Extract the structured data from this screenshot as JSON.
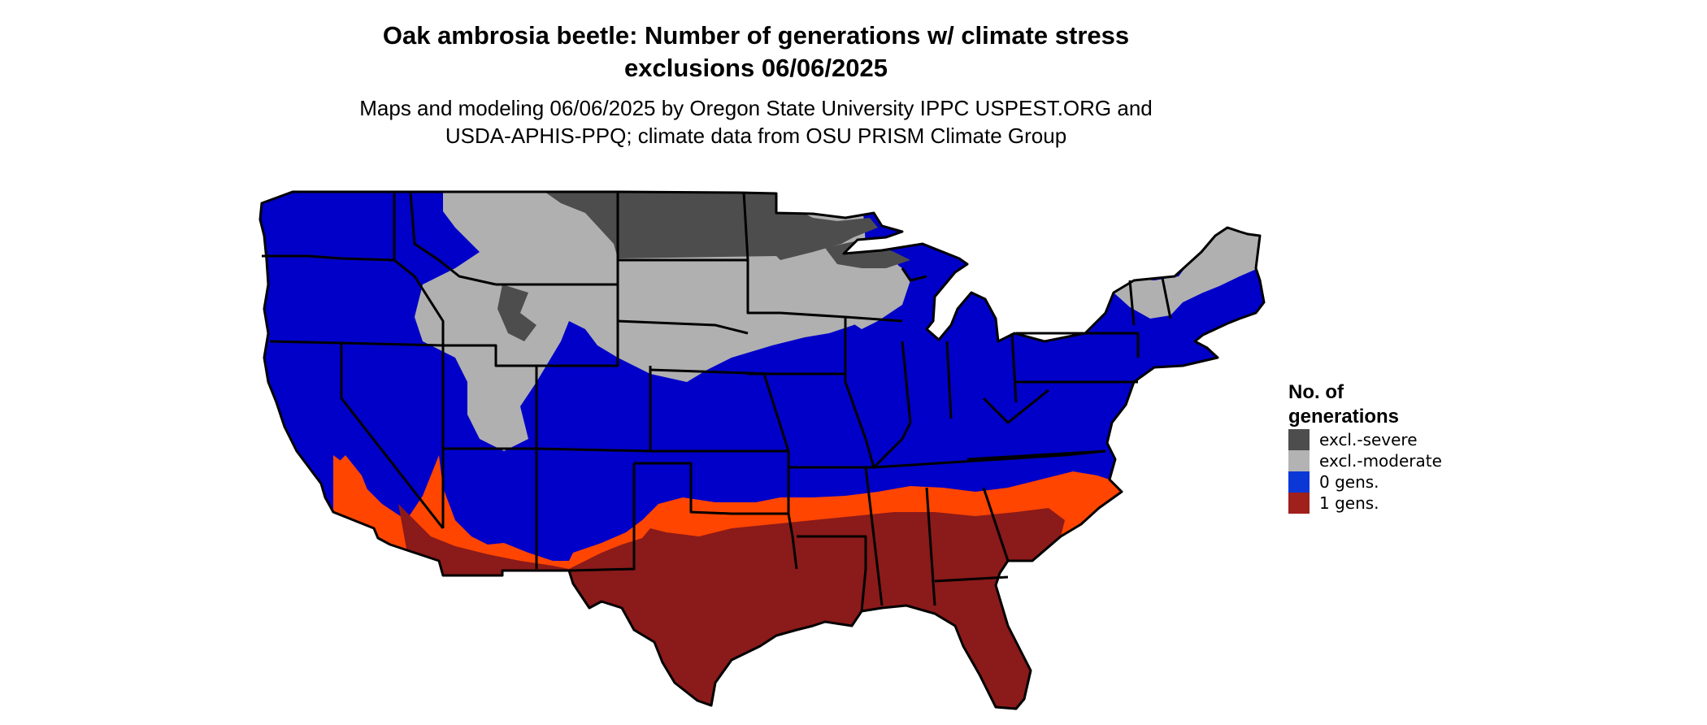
{
  "title_line1": "Oak ambrosia beetle: Number of generations w/ climate stress",
  "title_line2": "exclusions 06/06/2025",
  "subtitle_line1": "Maps and modeling 06/06/2025 by Oregon State University IPPC USPEST.ORG and",
  "subtitle_line2": "USDA-APHIS-PPQ; climate data from OSU PRISM Climate Group",
  "legend": {
    "title_line1": "No. of",
    "title_line2": "generations",
    "items": [
      {
        "label": "excl.-severe",
        "color": "#4d4d4d"
      },
      {
        "label": "excl.-moderate",
        "color": "#b3b3b3"
      },
      {
        "label": "0 gens.",
        "color": "#0a37d6"
      },
      {
        "label": "1 gens.",
        "color": "#a0201b"
      }
    ]
  },
  "map_colors": {
    "zero_gens_map": "#0000c8",
    "one_gen_map": "#8b1a1a",
    "one_gen_edge": "#ff4500",
    "excl_severe": "#4d4d4d",
    "excl_moderate": "#b0b0b0",
    "borders": "#000000"
  }
}
